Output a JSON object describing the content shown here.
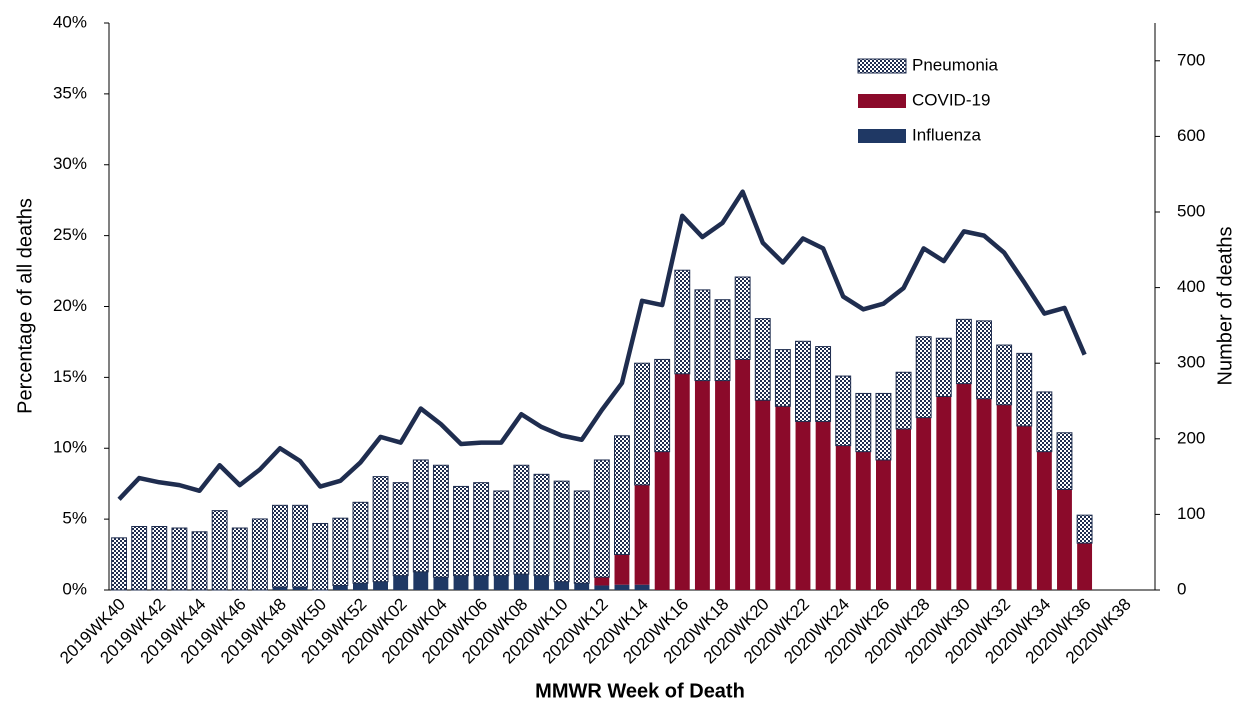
{
  "chart_data": {
    "type": "combo",
    "x_label": "MMWR Week of Death",
    "y_label": "Percentage of all deaths",
    "y2_label": "Number of deaths",
    "categories": [
      "2019WK40",
      null,
      "2019WK42",
      null,
      "2019WK44",
      null,
      "2019WK46",
      null,
      "2019WK48",
      null,
      "2019WK50",
      null,
      "2019WK52",
      null,
      "2020WK02",
      null,
      "2020WK04",
      null,
      "2020WK06",
      null,
      "2020WK08",
      null,
      "2020WK10",
      null,
      "2020WK12",
      null,
      "2020WK14",
      null,
      "2020WK16",
      null,
      "2020WK18",
      null,
      "2020WK20",
      null,
      "2020WK22",
      null,
      "2020WK24",
      null,
      "2020WK26",
      null,
      "2020WK28",
      null,
      "2020WK30",
      null,
      "2020WK32",
      null,
      "2020WK34",
      null,
      "2020WK36",
      null,
      "2020WK38",
      null
    ],
    "ylim": [
      0,
      40
    ],
    "yticks": [
      {
        "value": 0,
        "label": "0%"
      },
      {
        "value": 5,
        "label": "5%"
      },
      {
        "value": 10,
        "label": "10%"
      },
      {
        "value": 15,
        "label": "15%"
      },
      {
        "value": 20,
        "label": "20%"
      },
      {
        "value": 25,
        "label": "25%"
      },
      {
        "value": 30,
        "label": "30%"
      },
      {
        "value": 35,
        "label": "35%"
      },
      {
        "value": 40,
        "label": "40%"
      }
    ],
    "y2lim": [
      0,
      750
    ],
    "y2ticks": [
      0,
      100,
      200,
      300,
      400,
      500,
      600,
      700
    ],
    "legend": "top-right",
    "series": [
      {
        "name": "Pneumonia",
        "type": "bar",
        "axis": "y2",
        "color": "#1f2d4f",
        "pattern": "checker",
        "values": [
          69,
          84,
          84,
          82,
          77,
          105,
          82,
          94,
          108,
          108,
          88,
          89,
          107,
          139,
          123,
          148,
          148,
          118,
          123,
          112,
          144,
          134,
          133,
          122,
          155,
          157,
          161,
          122,
          137,
          120,
          107,
          109,
          108,
          75,
          106,
          99,
          92,
          77,
          88,
          75,
          107,
          77,
          85,
          103,
          79,
          96,
          79,
          75,
          37,
          null,
          null,
          null
        ]
      },
      {
        "name": "COVID-19",
        "type": "bar",
        "axis": "y2",
        "color": "#8b0a2a",
        "values": [
          0,
          0,
          0,
          0,
          0,
          0,
          0,
          0,
          0,
          0,
          0,
          0,
          0,
          0,
          0,
          0,
          0,
          0,
          0,
          0,
          0,
          0,
          0,
          0,
          11,
          40,
          132,
          183,
          286,
          277,
          277,
          305,
          251,
          243,
          223,
          223,
          191,
          183,
          172,
          213,
          228,
          256,
          273,
          253,
          245,
          217,
          183,
          133,
          62,
          null,
          null,
          null
        ]
      },
      {
        "name": "Influenza",
        "type": "bar",
        "axis": "y2",
        "color": "#1f3864",
        "values": [
          0,
          0,
          0,
          0,
          0,
          0,
          0,
          0,
          4,
          4,
          0,
          6,
          9,
          11,
          19,
          24,
          17,
          19,
          19,
          19,
          21,
          19,
          11,
          9,
          6,
          7,
          7,
          0,
          0,
          0,
          0,
          0,
          0,
          0,
          0,
          0,
          0,
          0,
          0,
          0,
          0,
          0,
          0,
          0,
          0,
          0,
          0,
          0,
          0,
          null,
          null,
          null
        ]
      },
      {
        "type": "line",
        "axis": "y",
        "color": "#1f2d4f",
        "values": [
          6.4,
          7.9,
          7.6,
          7.4,
          7.0,
          8.8,
          7.4,
          8.5,
          10.0,
          9.1,
          7.3,
          7.7,
          9.0,
          10.8,
          10.4,
          12.8,
          11.7,
          10.3,
          10.4,
          10.4,
          12.4,
          11.5,
          10.9,
          10.6,
          12.7,
          14.6,
          20.4,
          20.1,
          26.4,
          24.9,
          25.9,
          28.1,
          24.5,
          23.1,
          24.8,
          24.1,
          20.7,
          19.8,
          20.2,
          21.3,
          24.1,
          23.2,
          25.3,
          25.0,
          23.8,
          21.7,
          19.5,
          19.9,
          16.6,
          null,
          null,
          null
        ]
      }
    ]
  }
}
